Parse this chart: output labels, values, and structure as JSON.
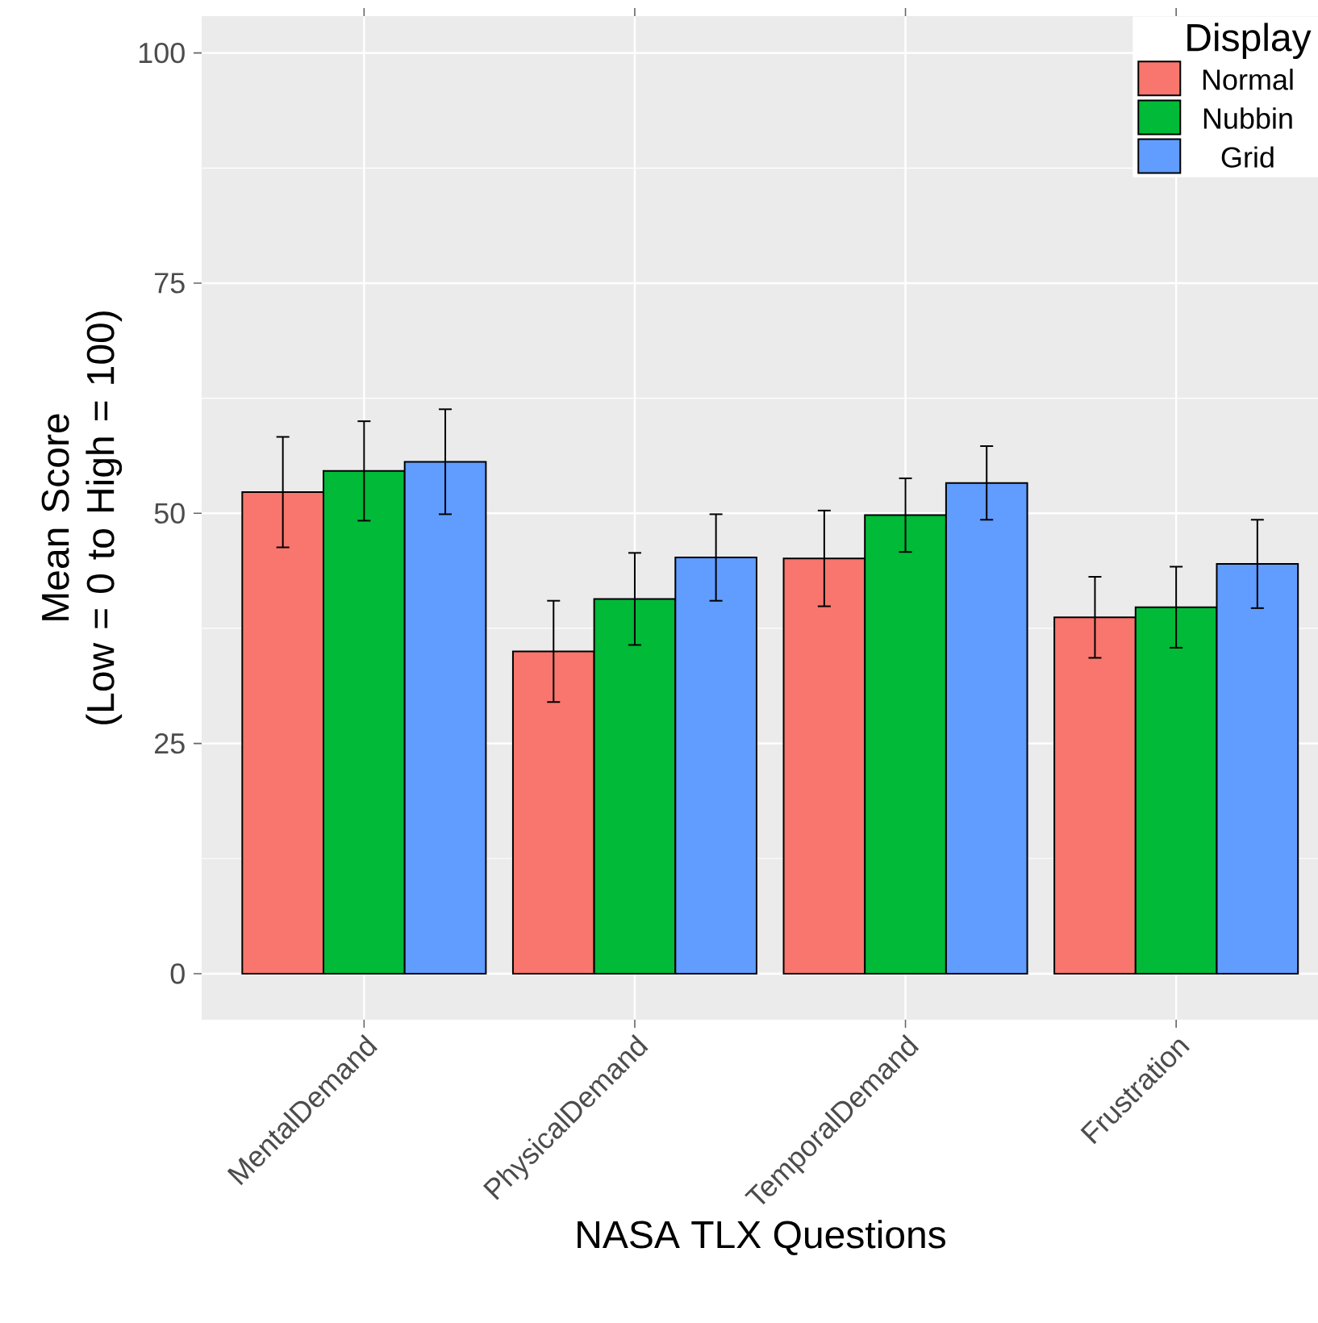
{
  "chart_data": {
    "type": "bar",
    "xlabel": "NASA TLX Questions",
    "ylabel": "Mean  Score\n(Low = 0 to High = 100)",
    "legend_title": "Display",
    "categories": [
      "MentalDemand",
      "PhysicalDemand",
      "TemporalDemand",
      "Frustration"
    ],
    "series": [
      {
        "name": "Normal",
        "color": "#f8766d",
        "values": [
          52.3,
          35.0,
          45.1,
          38.7
        ],
        "errors": [
          6,
          5.5,
          5.2,
          4.4
        ]
      },
      {
        "name": "Nubbin",
        "color": "#00ba38",
        "values": [
          54.6,
          40.7,
          49.8,
          39.8
        ],
        "errors": [
          5.4,
          5,
          4,
          4.4
        ]
      },
      {
        "name": "Grid",
        "color": "#619cff",
        "values": [
          55.6,
          45.2,
          53.3,
          44.5
        ],
        "errors": [
          5.7,
          4.7,
          4,
          4.8
        ]
      }
    ],
    "ylim": [
      -5,
      104
    ],
    "yticks": [
      0,
      25,
      50,
      75,
      100
    ],
    "grid": true,
    "legend": "top right"
  }
}
